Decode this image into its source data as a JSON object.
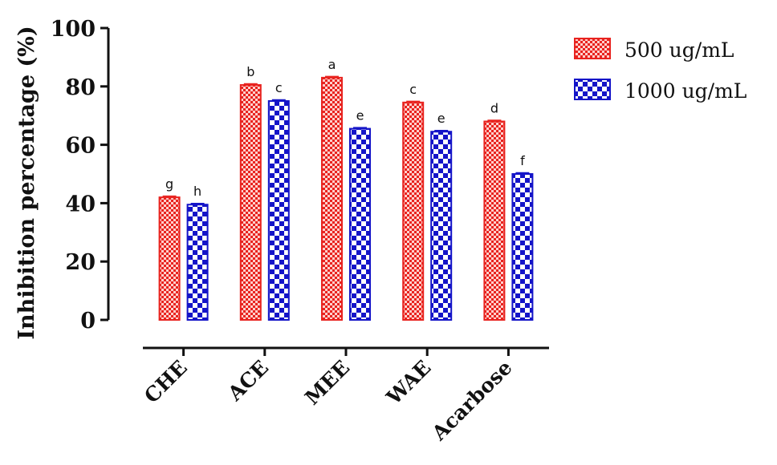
{
  "colors": {
    "series1": "#e8231f",
    "series1_pattern_light": "#ffd0cc",
    "series2": "#1414c8",
    "series2_pattern_light": "#ffffff",
    "axis": "#111111"
  },
  "chart_data": {
    "type": "bar",
    "title": "",
    "xlabel": "",
    "ylabel": "Inhibition percentage (%)",
    "ylim": [
      0,
      100
    ],
    "yticks": [
      "0",
      "20",
      "40",
      "60",
      "80",
      "100"
    ],
    "categories": [
      "CHE",
      "ACE",
      "MEE",
      "WAE",
      "Acarbose"
    ],
    "legend_position": "top-right",
    "grid": false,
    "series": [
      {
        "name": "500 ug/mL",
        "values": [
          42,
          80.5,
          83,
          74.5,
          68
        ],
        "significance_letters": [
          "g",
          "b",
          "a",
          "c",
          "d"
        ]
      },
      {
        "name": "1000 ug/mL",
        "values": [
          39.5,
          75,
          65.5,
          64.5,
          50
        ],
        "significance_letters": [
          "h",
          "c",
          "e",
          "e",
          "f"
        ]
      }
    ]
  }
}
